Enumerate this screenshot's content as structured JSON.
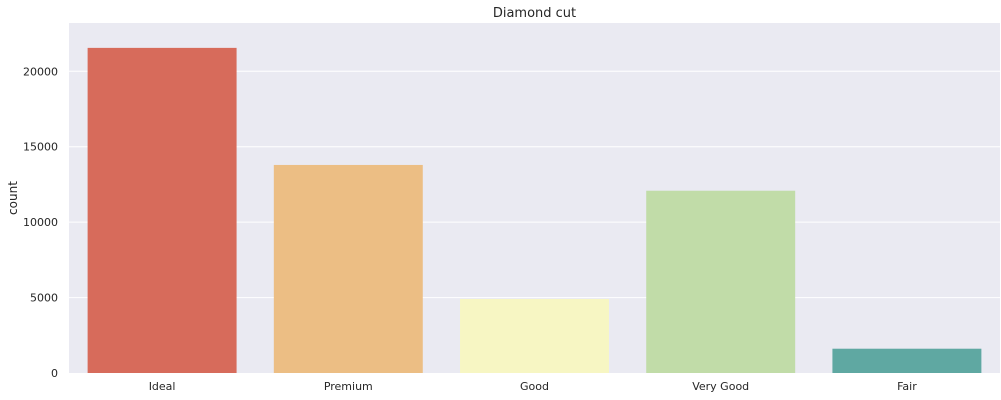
{
  "chart_data": {
    "type": "bar",
    "title": "Diamond cut",
    "xlabel": "",
    "ylabel": "count",
    "categories": [
      "Ideal",
      "Premium",
      "Good",
      "Very Good",
      "Fair"
    ],
    "values": [
      21551,
      13791,
      4906,
      12082,
      1610
    ],
    "colors": [
      "#d76b5b",
      "#ecbe84",
      "#f7f6c3",
      "#c1dca8",
      "#5fa8a2"
    ],
    "ylim": [
      0,
      23200
    ],
    "yticks": [
      0,
      5000,
      10000,
      15000,
      20000
    ],
    "ytick_labels": [
      "0",
      "5000",
      "10000",
      "15000",
      "20000"
    ],
    "grid": true,
    "background": "#eaeaf2"
  }
}
